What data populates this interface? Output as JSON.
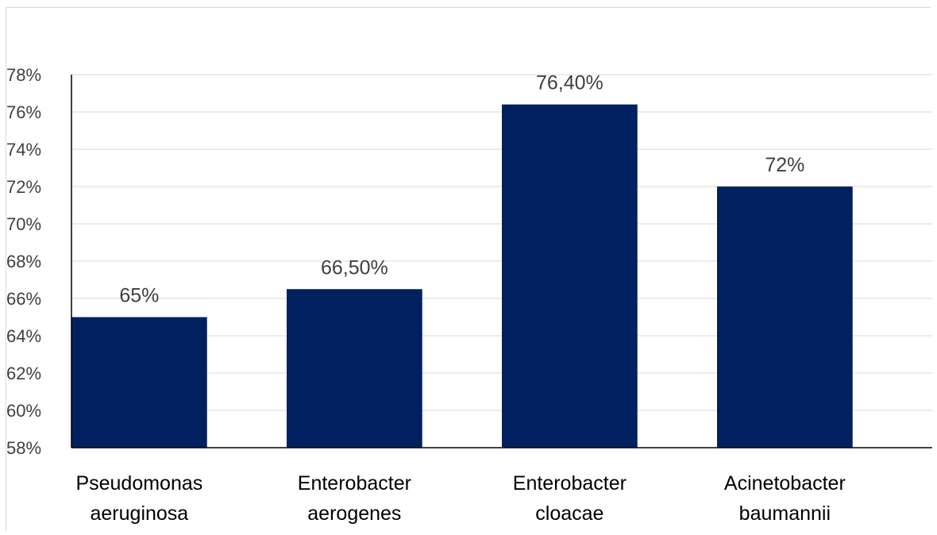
{
  "chart_data": {
    "type": "bar",
    "categories": [
      [
        "Pseudomonas",
        "aeruginosa"
      ],
      [
        "Enterobacter",
        "aerogenes"
      ],
      [
        "Enterobacter",
        "cloacae"
      ],
      [
        "Acinetobacter",
        "baumannii"
      ]
    ],
    "values": [
      65,
      66.5,
      76.4,
      72
    ],
    "data_labels": [
      "65%",
      "66,50%",
      "76,40%",
      "72%"
    ],
    "ylim": [
      58,
      78
    ],
    "y_ticks": [
      58,
      60,
      62,
      64,
      66,
      68,
      70,
      72,
      74,
      76,
      78
    ],
    "y_tick_labels": [
      "58%",
      "60%",
      "62%",
      "64%",
      "66%",
      "68%",
      "70%",
      "72%",
      "74%",
      "76%",
      "78%"
    ],
    "grid": true,
    "legend": "none",
    "bar_color": "#002060",
    "grid_color": "#d9d9d9",
    "axis_color": "#000000"
  }
}
